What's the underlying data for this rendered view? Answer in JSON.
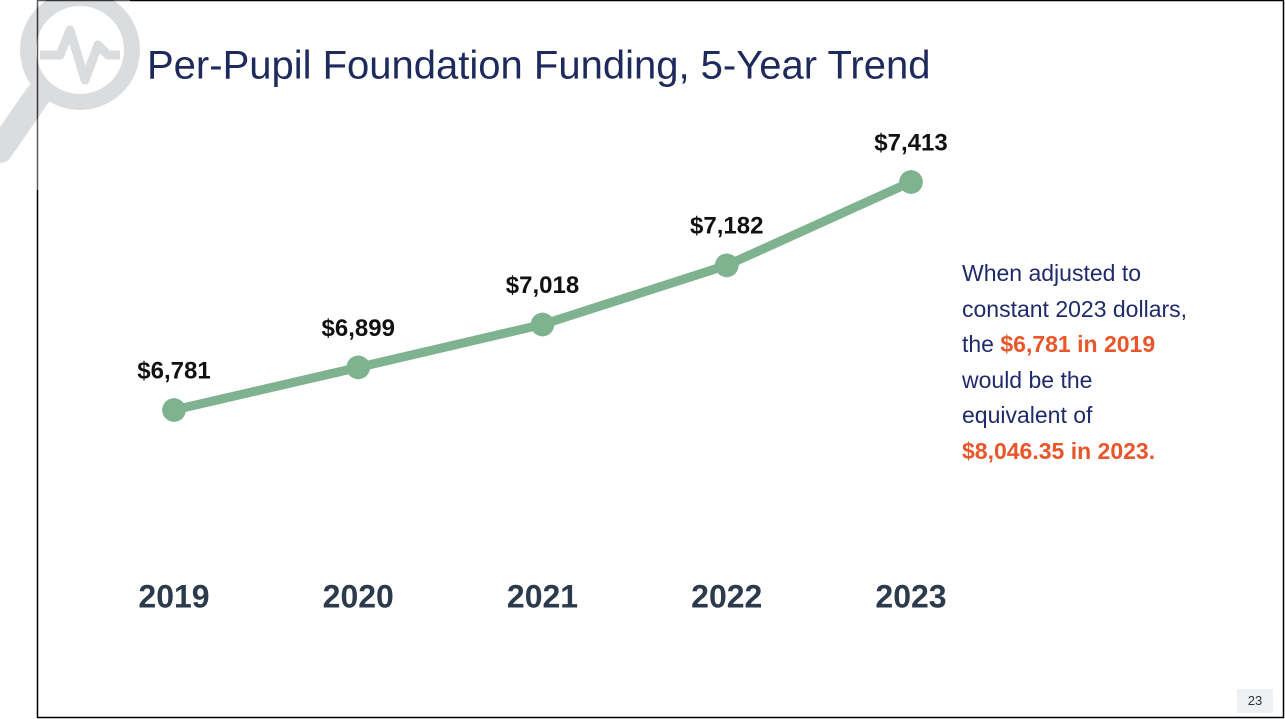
{
  "chart_data": {
    "type": "line",
    "title": "Per-Pupil Foundation Funding, 5-Year Trend",
    "categories": [
      "2019",
      "2020",
      "2021",
      "2022",
      "2023"
    ],
    "values": [
      6781,
      6899,
      7018,
      7182,
      7413
    ],
    "value_labels": [
      "$6,781",
      "$6,899",
      "$7,018",
      "$7,182",
      "$7,413"
    ],
    "color": "#7fb28f",
    "annotation": [
      [
        {
          "text": "When adjusted to",
          "color": "#1f2a6b"
        }
      ],
      [
        {
          "text": "constant 2023 dollars,",
          "color": "#1f2a6b"
        }
      ],
      [
        {
          "text": "the ",
          "color": "#1f2a6b"
        },
        {
          "text": "$6,781 in 2019",
          "color": "#e8562a",
          "bold": true
        }
      ],
      [
        {
          "text": "would be the",
          "color": "#1f2a6b"
        }
      ],
      [
        {
          "text": "equivalent of",
          "color": "#1f2a6b"
        }
      ],
      [
        {
          "text": "$8,046.35 in 2023.",
          "color": "#e8562a",
          "bold": true
        }
      ]
    ]
  },
  "slide_number": "23"
}
